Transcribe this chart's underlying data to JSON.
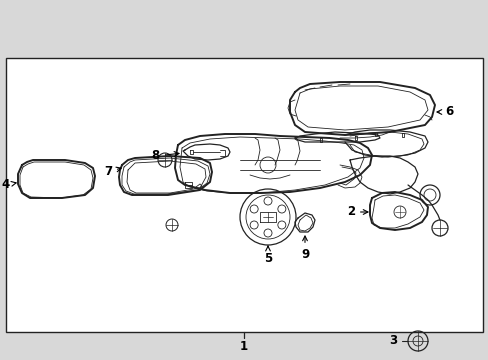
{
  "bg_color": "#d8d8d8",
  "diagram_bg": "#f0f0f0",
  "border_color": "#222222",
  "line_color": "#222222",
  "label_color": "#000000",
  "lw_heavy": 1.4,
  "lw_medium": 0.9,
  "lw_light": 0.6,
  "label_fs": 8.5,
  "figw": 4.89,
  "figh": 3.6,
  "dpi": 100
}
